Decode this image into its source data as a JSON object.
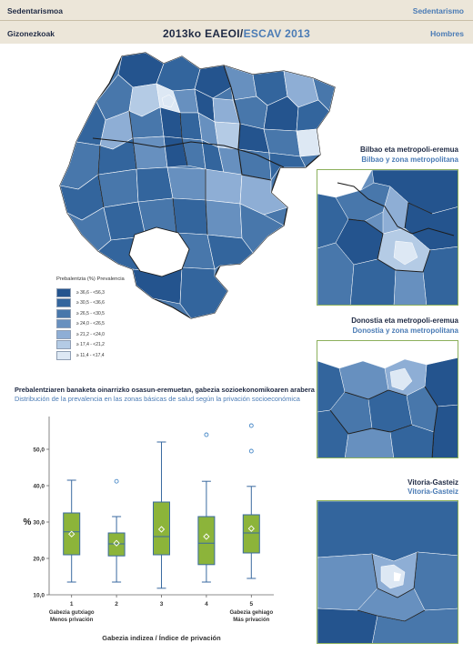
{
  "header": {
    "top_left": "Sedentarismoa",
    "bottom_left": "Gizonezkoak",
    "top_right": "Sedentarismo",
    "bottom_right": "Hombres",
    "title_eu": "2013ko EAEOI",
    "title_sep": "/",
    "title_es": "ESCAV 2013"
  },
  "legend": {
    "title": "Prebalentzia (%) Prevalencia",
    "classes": [
      {
        "label": "≥ 36,6 - <56,3",
        "color": "#24548e"
      },
      {
        "label": "≥ 30,5 - <36,6",
        "color": "#33659d"
      },
      {
        "label": "≥ 26,5 - <30,5",
        "color": "#4877ab"
      },
      {
        "label": "≥ 24,0 - <26,5",
        "color": "#6790bf"
      },
      {
        "label": "≥ 21,2 - <24,0",
        "color": "#8eaed5"
      },
      {
        "label": "≥ 17,4 - <21,2",
        "color": "#b4cbe5"
      },
      {
        "label": "≥ 11,4 - <17,4",
        "color": "#dde8f4"
      }
    ]
  },
  "insets": [
    {
      "title_eu": "Bilbao eta metropoli-eremua",
      "title_es": "Bilbao y zona metropolitana"
    },
    {
      "title_eu": "Donostia eta metropoli-eremua",
      "title_es": "Donostia y zona metropolitana"
    },
    {
      "title_eu": "Vitoria-Gasteiz",
      "title_es": "Vitoria-Gasteiz"
    }
  ],
  "chart_title": {
    "eu": "Prebalentziaren banaketa oinarrizko osasun-eremuetan, gabezia sozioekonomikoaren arabera",
    "es": "Distribución de la prevalencia en las zonas básicas de salud según la privación socioeconómica"
  },
  "chart_data": {
    "type": "boxplot",
    "categories": [
      "1",
      "2",
      "3",
      "4",
      "5"
    ],
    "xlabel": "Gabezia indizea / Índice de privación",
    "ylabel": "%",
    "ylim": [
      10,
      58
    ],
    "yticks": [
      10,
      20,
      30,
      40,
      50
    ],
    "ytick_labels": [
      "10,0",
      "20,0",
      "30,0",
      "40,0",
      "50,0"
    ],
    "x_end_labels": {
      "left": [
        "Gabezia gutxiago",
        "Menos privación"
      ],
      "right": [
        "Gabezia gehiago",
        "Más privación"
      ]
    },
    "boxes": [
      {
        "whisker_low": 13.5,
        "q1": 21.0,
        "median": 27.3,
        "q3": 32.5,
        "whisker_high": 41.5,
        "mean": 26.7,
        "outliers": []
      },
      {
        "whisker_low": 13.5,
        "q1": 20.7,
        "median": 24.0,
        "q3": 27.0,
        "whisker_high": 31.5,
        "mean": 24.2,
        "outliers": [
          41.2
        ]
      },
      {
        "whisker_low": 11.8,
        "q1": 21.0,
        "median": 26.0,
        "q3": 35.5,
        "whisker_high": 52.0,
        "mean": 28.0,
        "outliers": []
      },
      {
        "whisker_low": 13.5,
        "q1": 18.3,
        "median": 24.2,
        "q3": 31.5,
        "whisker_high": 41.2,
        "mean": 26.0,
        "outliers": [
          54.0
        ]
      },
      {
        "whisker_low": 14.5,
        "q1": 21.5,
        "median": 27.0,
        "q3": 32.0,
        "whisker_high": 39.8,
        "mean": 28.2,
        "outliers": [
          49.5,
          56.5
        ]
      }
    ],
    "box_fill": "#8cb43a",
    "box_stroke": "#3a6aa0",
    "grid": false
  }
}
